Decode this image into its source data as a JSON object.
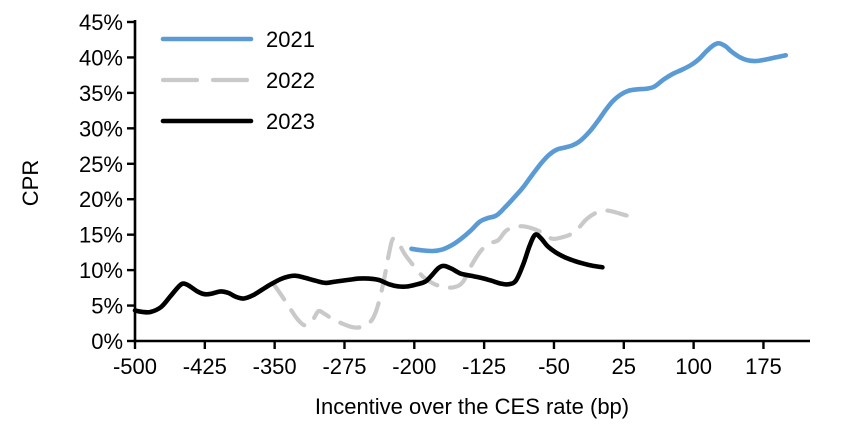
{
  "chart_data": {
    "type": "line",
    "title": "",
    "xlabel": "Incentive over the CES rate (bp)",
    "ylabel": "CPR",
    "xlim": [
      -500,
      225
    ],
    "ylim": [
      0,
      45
    ],
    "x_ticks": [
      -500,
      -425,
      -350,
      -275,
      -200,
      -125,
      -50,
      25,
      100,
      175
    ],
    "y_ticks": [
      0,
      5,
      10,
      15,
      20,
      25,
      30,
      35,
      40,
      45
    ],
    "y_tick_suffix": "%",
    "grid": false,
    "legend_position": "top-left-inside",
    "axis_color": "#000000",
    "series": [
      {
        "name": "2021",
        "color": "#5b9bd5",
        "dash": "solid",
        "width": 4.6,
        "points": [
          [
            -203,
            13.0
          ],
          [
            -192,
            12.8
          ],
          [
            -180,
            12.7
          ],
          [
            -170,
            12.9
          ],
          [
            -160,
            13.5
          ],
          [
            -150,
            14.4
          ],
          [
            -140,
            15.5
          ],
          [
            -130,
            16.8
          ],
          [
            -122,
            17.3
          ],
          [
            -112,
            17.7
          ],
          [
            -103,
            18.8
          ],
          [
            -93,
            20.2
          ],
          [
            -83,
            21.7
          ],
          [
            -73,
            23.5
          ],
          [
            -63,
            25.2
          ],
          [
            -55,
            26.3
          ],
          [
            -47,
            27.0
          ],
          [
            -38,
            27.3
          ],
          [
            -30,
            27.6
          ],
          [
            -22,
            28.2
          ],
          [
            -12,
            29.5
          ],
          [
            -3,
            31.0
          ],
          [
            5,
            32.5
          ],
          [
            13,
            33.8
          ],
          [
            21,
            34.7
          ],
          [
            30,
            35.3
          ],
          [
            40,
            35.5
          ],
          [
            50,
            35.6
          ],
          [
            58,
            35.9
          ],
          [
            68,
            36.9
          ],
          [
            78,
            37.7
          ],
          [
            88,
            38.3
          ],
          [
            98,
            39.0
          ],
          [
            106,
            39.8
          ],
          [
            114,
            40.9
          ],
          [
            121,
            41.7
          ],
          [
            127,
            42.0
          ],
          [
            134,
            41.6
          ],
          [
            141,
            40.8
          ],
          [
            150,
            40.0
          ],
          [
            158,
            39.6
          ],
          [
            167,
            39.5
          ],
          [
            177,
            39.7
          ],
          [
            188,
            40.0
          ],
          [
            199,
            40.3
          ]
        ]
      },
      {
        "name": "2022",
        "color": "#c9c9c9",
        "dash": "dashed",
        "width": 4.2,
        "points": [
          [
            -352,
            8.2
          ],
          [
            -342,
            6.3
          ],
          [
            -333,
            4.5
          ],
          [
            -325,
            3.0
          ],
          [
            -317,
            2.2
          ],
          [
            -309,
            3.0
          ],
          [
            -303,
            4.2
          ],
          [
            -296,
            3.8
          ],
          [
            -288,
            3.1
          ],
          [
            -278,
            2.5
          ],
          [
            -268,
            2.0
          ],
          [
            -260,
            1.9
          ],
          [
            -251,
            2.3
          ],
          [
            -244,
            3.3
          ],
          [
            -238,
            5.5
          ],
          [
            -232,
            9.0
          ],
          [
            -227,
            12.5
          ],
          [
            -223,
            14.4
          ],
          [
            -217,
            13.8
          ],
          [
            -210,
            12.2
          ],
          [
            -200,
            10.5
          ],
          [
            -190,
            9.0
          ],
          [
            -178,
            8.0
          ],
          [
            -167,
            7.6
          ],
          [
            -157,
            7.6
          ],
          [
            -148,
            8.3
          ],
          [
            -138,
            10.8
          ],
          [
            -128,
            12.8
          ],
          [
            -118,
            13.8
          ],
          [
            -110,
            14.2
          ],
          [
            -102,
            15.5
          ],
          [
            -94,
            16.0
          ],
          [
            -85,
            16.2
          ],
          [
            -76,
            16.0
          ],
          [
            -66,
            15.5
          ],
          [
            -57,
            14.7
          ],
          [
            -50,
            14.4
          ],
          [
            -42,
            14.6
          ],
          [
            -33,
            15.0
          ],
          [
            -24,
            15.9
          ],
          [
            -15,
            17.2
          ],
          [
            -6,
            18.0
          ],
          [
            3,
            18.4
          ],
          [
            12,
            18.3
          ],
          [
            20,
            18.0
          ],
          [
            28,
            17.7
          ]
        ]
      },
      {
        "name": "2023",
        "color": "#000000",
        "dash": "solid",
        "width": 4.6,
        "points": [
          [
            -500,
            4.3
          ],
          [
            -492,
            4.1
          ],
          [
            -483,
            4.1
          ],
          [
            -472,
            4.8
          ],
          [
            -462,
            6.3
          ],
          [
            -453,
            7.7
          ],
          [
            -448,
            8.1
          ],
          [
            -442,
            7.8
          ],
          [
            -433,
            7.0
          ],
          [
            -425,
            6.6
          ],
          [
            -417,
            6.7
          ],
          [
            -408,
            7.0
          ],
          [
            -400,
            6.8
          ],
          [
            -391,
            6.2
          ],
          [
            -383,
            6.0
          ],
          [
            -374,
            6.4
          ],
          [
            -364,
            7.2
          ],
          [
            -354,
            8.0
          ],
          [
            -344,
            8.7
          ],
          [
            -335,
            9.1
          ],
          [
            -327,
            9.2
          ],
          [
            -317,
            8.9
          ],
          [
            -306,
            8.5
          ],
          [
            -295,
            8.2
          ],
          [
            -284,
            8.4
          ],
          [
            -272,
            8.6
          ],
          [
            -260,
            8.8
          ],
          [
            -249,
            8.8
          ],
          [
            -238,
            8.6
          ],
          [
            -227,
            8.0
          ],
          [
            -217,
            7.7
          ],
          [
            -207,
            7.7
          ],
          [
            -197,
            8.0
          ],
          [
            -188,
            8.4
          ],
          [
            -181,
            9.3
          ],
          [
            -174,
            10.3
          ],
          [
            -168,
            10.6
          ],
          [
            -160,
            10.2
          ],
          [
            -150,
            9.5
          ],
          [
            -139,
            9.2
          ],
          [
            -128,
            8.9
          ],
          [
            -117,
            8.5
          ],
          [
            -107,
            8.1
          ],
          [
            -99,
            8.0
          ],
          [
            -91,
            8.5
          ],
          [
            -83,
            10.8
          ],
          [
            -76,
            13.5
          ],
          [
            -70,
            15.0
          ],
          [
            -64,
            14.5
          ],
          [
            -57,
            13.4
          ],
          [
            -48,
            12.5
          ],
          [
            -38,
            11.8
          ],
          [
            -28,
            11.3
          ],
          [
            -18,
            10.9
          ],
          [
            -8,
            10.6
          ],
          [
            2,
            10.4
          ]
        ]
      }
    ]
  }
}
